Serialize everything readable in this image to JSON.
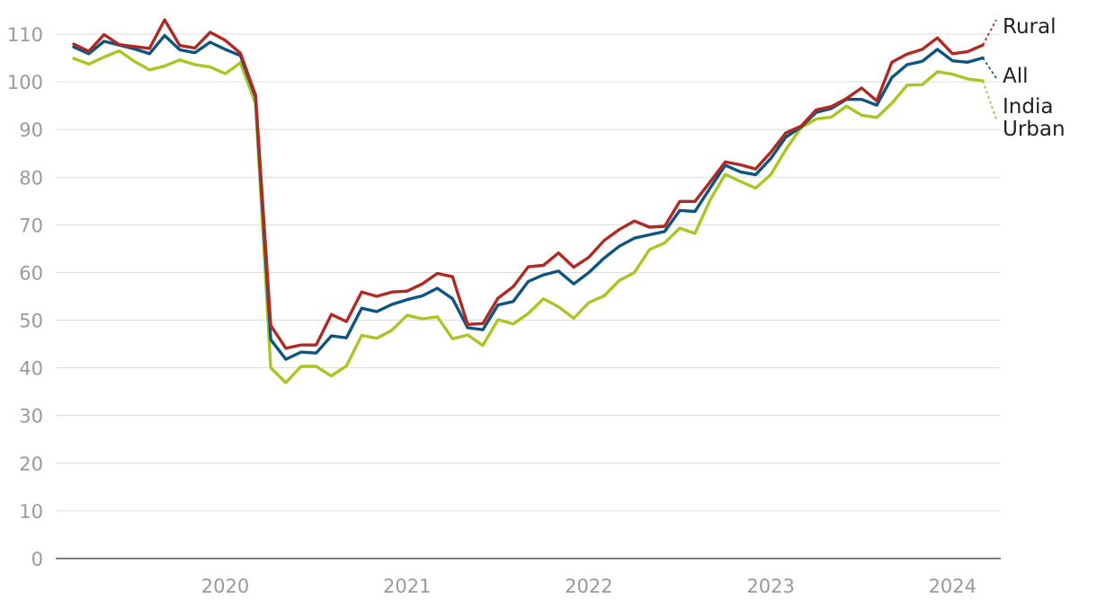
{
  "chart_data": {
    "type": "line",
    "title": "",
    "xlabel": "",
    "ylabel": "",
    "ylim": [
      0,
      110
    ],
    "yticks": [
      "0",
      "10",
      "20",
      "30",
      "40",
      "50",
      "60",
      "70",
      "80",
      "90",
      "100",
      "110"
    ],
    "xtick_labels": [
      "2020",
      "2021",
      "2022",
      "2023",
      "2024"
    ],
    "grid": true,
    "legend_placement": "right end labels",
    "x": [
      "2019-03",
      "2019-04",
      "2019-05",
      "2019-06",
      "2019-07",
      "2019-08",
      "2019-09",
      "2019-10",
      "2019-11",
      "2019-12",
      "2020-01",
      "2020-02",
      "2020-03",
      "2020-04",
      "2020-05",
      "2020-06",
      "2020-07",
      "2020-08",
      "2020-09",
      "2020-10",
      "2020-11",
      "2020-12",
      "2021-01",
      "2021-02",
      "2021-03",
      "2021-04",
      "2021-05",
      "2021-06",
      "2021-07",
      "2021-08",
      "2021-09",
      "2021-10",
      "2021-11",
      "2021-12",
      "2022-01",
      "2022-02",
      "2022-03",
      "2022-04",
      "2022-05",
      "2022-06",
      "2022-07",
      "2022-08",
      "2022-09",
      "2022-10",
      "2022-11",
      "2022-12",
      "2023-01",
      "2023-02",
      "2023-03",
      "2023-04",
      "2023-05",
      "2023-06",
      "2023-07",
      "2023-08",
      "2023-09",
      "2023-10",
      "2023-11",
      "2023-12",
      "2024-01",
      "2024-02",
      "2024-03"
    ],
    "series": [
      {
        "name": "Rural",
        "color": "#b02a25",
        "values": [
          107.9,
          106.4,
          109.9,
          107.8,
          107.4,
          107.0,
          113.0,
          107.6,
          107.1,
          110.4,
          108.7,
          106.0,
          97.2,
          48.9,
          44.1,
          44.8,
          44.8,
          51.2,
          49.7,
          55.9,
          55.0,
          55.9,
          56.1,
          57.6,
          59.8,
          59.1,
          49.1,
          49.3,
          54.6,
          57.0,
          61.2,
          61.5,
          64.1,
          61.1,
          63.2,
          66.7,
          69.0,
          70.8,
          69.5,
          69.7,
          74.9,
          74.9,
          79.0,
          83.2,
          82.6,
          81.7,
          85.2,
          89.3,
          90.7,
          94.1,
          94.8,
          96.5,
          98.7,
          96.0,
          104.1,
          105.8,
          106.8,
          109.2,
          105.9,
          106.3,
          107.7
        ]
      },
      {
        "name": "All",
        "color": "#0d5580",
        "values": [
          107.3,
          105.9,
          108.5,
          107.7,
          106.9,
          105.9,
          109.7,
          106.7,
          106.1,
          108.3,
          106.8,
          105.5,
          96.8,
          45.9,
          41.8,
          43.3,
          43.1,
          46.7,
          46.3,
          52.5,
          51.8,
          53.3,
          54.3,
          55.1,
          56.7,
          54.5,
          48.4,
          48.0,
          53.2,
          53.9,
          58.1,
          59.5,
          60.3,
          57.6,
          60.0,
          63.0,
          65.5,
          67.2,
          67.9,
          68.6,
          73.0,
          72.8,
          77.7,
          82.5,
          81.1,
          80.5,
          83.9,
          88.4,
          90.5,
          93.6,
          94.4,
          96.3,
          96.3,
          95.1,
          100.9,
          103.6,
          104.3,
          106.8,
          104.4,
          104.1,
          105.0
        ]
      },
      {
        "name": "Urban",
        "color": "#a8c722",
        "values": [
          104.9,
          103.7,
          105.2,
          106.5,
          104.3,
          102.5,
          103.3,
          104.6,
          103.6,
          103.1,
          101.7,
          104.0,
          95.4,
          40.0,
          36.9,
          40.3,
          40.3,
          38.3,
          40.4,
          46.8,
          46.2,
          47.9,
          51.0,
          50.3,
          50.7,
          46.1,
          46.9,
          44.7,
          50.1,
          49.2,
          51.4,
          54.5,
          52.8,
          50.4,
          53.7,
          55.1,
          58.3,
          60.0,
          64.8,
          66.2,
          69.3,
          68.2,
          75.2,
          80.6,
          79.1,
          77.7,
          80.5,
          85.8,
          90.4,
          92.2,
          92.6,
          94.9,
          93.0,
          92.5,
          95.5,
          99.3,
          99.4,
          102.1,
          101.6,
          100.6,
          100.2
        ]
      }
    ],
    "end_labels": {
      "rural": "Rural",
      "all": "All",
      "india": "India",
      "urban": "Urban"
    }
  }
}
